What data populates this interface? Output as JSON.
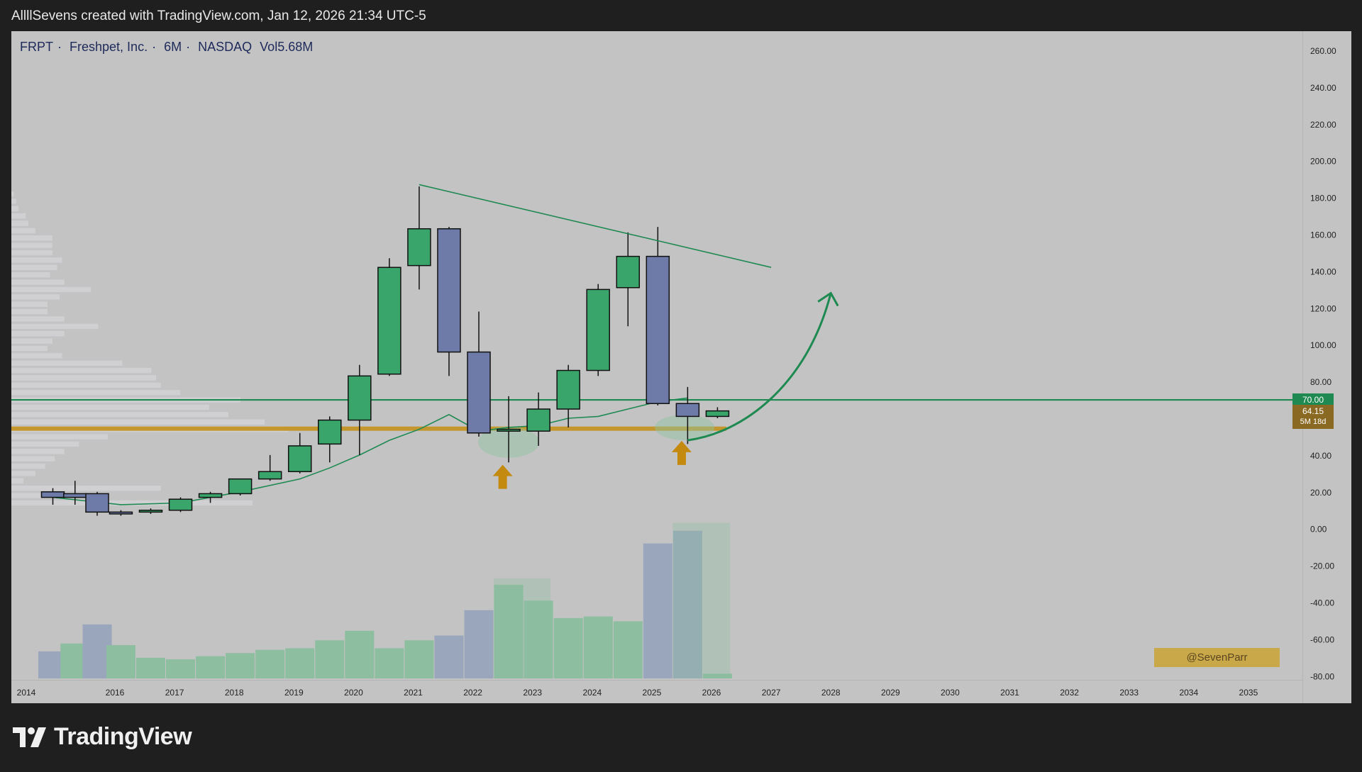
{
  "header": {
    "title": "AllllSevens created with TradingView.com, Jan 12, 2026 21:34 UTC-5"
  },
  "legend": {
    "symbol": "FRPT",
    "name": "Freshpet, Inc.",
    "interval": "6M",
    "exchange": "NASDAQ",
    "volume": "Vol5.68M"
  },
  "price_labels": {
    "level": "70.00",
    "last": "64.15",
    "countdown": "5M 18d"
  },
  "watermark": "@SevenParr",
  "brand": {
    "name": "TradingView"
  },
  "colors": {
    "up": "#3aa56b",
    "down": "#6e7ba8",
    "level_line": "#1e8a52",
    "support": "#c4972e",
    "trend": "#1e8a52",
    "arrow": "#c48a10",
    "volume_up": "#8dbea0",
    "volume_down": "#9aa6bc"
  },
  "chart_data": {
    "type": "candlestick",
    "interval": "6M",
    "ylim": [
      -80,
      260
    ],
    "yticks": [
      "260.00",
      "240.00",
      "220.00",
      "200.00",
      "180.00",
      "160.00",
      "140.00",
      "120.00",
      "100.00",
      "80.00",
      "60.00",
      "40.00",
      "20.00",
      "0.00",
      "-20.00",
      "-40.00",
      "-60.00",
      "-80.00"
    ],
    "xticks": [
      "2014",
      "2016",
      "2017",
      "2018",
      "2019",
      "2020",
      "2021",
      "2022",
      "2023",
      "2024",
      "2025",
      "2026",
      "2027",
      "2028",
      "2029",
      "2030",
      "2031",
      "2032",
      "2033",
      "2034",
      "2035"
    ],
    "candles": [
      {
        "t": 2014.6,
        "o": 20,
        "h": 22,
        "l": 13,
        "c": 17
      },
      {
        "t": 2015.1,
        "o": 19,
        "h": 26,
        "l": 13,
        "c": 17
      },
      {
        "t": 2015.6,
        "o": 19,
        "h": 20,
        "l": 7,
        "c": 9
      },
      {
        "t": 2016.1,
        "o": 9,
        "h": 10,
        "l": 7,
        "c": 8
      },
      {
        "t": 2016.6,
        "o": 9,
        "h": 11,
        "l": 8,
        "c": 10
      },
      {
        "t": 2017.1,
        "o": 10,
        "h": 17,
        "l": 9,
        "c": 16
      },
      {
        "t": 2017.6,
        "o": 17,
        "h": 20,
        "l": 14,
        "c": 19
      },
      {
        "t": 2018.1,
        "o": 19,
        "h": 27,
        "l": 18,
        "c": 27
      },
      {
        "t": 2018.6,
        "o": 27,
        "h": 40,
        "l": 26,
        "c": 31
      },
      {
        "t": 2019.1,
        "o": 31,
        "h": 52,
        "l": 30,
        "c": 45
      },
      {
        "t": 2019.6,
        "o": 46,
        "h": 61,
        "l": 36,
        "c": 59
      },
      {
        "t": 2020.1,
        "o": 59,
        "h": 89,
        "l": 40,
        "c": 83
      },
      {
        "t": 2020.6,
        "o": 84,
        "h": 147,
        "l": 83,
        "c": 142
      },
      {
        "t": 2021.1,
        "o": 143,
        "h": 186,
        "l": 130,
        "c": 163
      },
      {
        "t": 2021.6,
        "o": 163,
        "h": 164,
        "l": 83,
        "c": 96
      },
      {
        "t": 2022.1,
        "o": 96,
        "h": 118,
        "l": 50,
        "c": 52
      },
      {
        "t": 2022.6,
        "o": 53,
        "h": 72,
        "l": 36,
        "c": 54
      },
      {
        "t": 2023.1,
        "o": 53,
        "h": 74,
        "l": 45,
        "c": 65
      },
      {
        "t": 2023.6,
        "o": 65,
        "h": 89,
        "l": 55,
        "c": 86
      },
      {
        "t": 2024.1,
        "o": 86,
        "h": 133,
        "l": 83,
        "c": 130
      },
      {
        "t": 2024.6,
        "o": 131,
        "h": 161,
        "l": 110,
        "c": 148
      },
      {
        "t": 2025.1,
        "o": 148,
        "h": 164,
        "l": 67,
        "c": 68
      },
      {
        "t": 2025.6,
        "o": 68,
        "h": 77,
        "l": 46,
        "c": 61
      },
      {
        "t": 2026.1,
        "o": 61,
        "h": 66,
        "l": 60,
        "c": 64
      }
    ],
    "volume": [
      {
        "t": 2014.6,
        "v": 17,
        "up": false
      },
      {
        "t": 2015.1,
        "v": 22,
        "up": true
      },
      {
        "t": 2015.6,
        "v": 34,
        "up": false
      },
      {
        "t": 2016.1,
        "v": 21,
        "up": true
      },
      {
        "t": 2016.6,
        "v": 13,
        "up": true
      },
      {
        "t": 2017.1,
        "v": 12,
        "up": true
      },
      {
        "t": 2017.6,
        "v": 14,
        "up": true
      },
      {
        "t": 2018.1,
        "v": 16,
        "up": true
      },
      {
        "t": 2018.6,
        "v": 18,
        "up": true
      },
      {
        "t": 2019.1,
        "v": 19,
        "up": true
      },
      {
        "t": 2019.6,
        "v": 24,
        "up": true
      },
      {
        "t": 2020.1,
        "v": 30,
        "up": true
      },
      {
        "t": 2020.6,
        "v": 19,
        "up": true
      },
      {
        "t": 2021.1,
        "v": 24,
        "up": true
      },
      {
        "t": 2021.6,
        "v": 27,
        "up": false
      },
      {
        "t": 2022.1,
        "v": 43,
        "up": false
      },
      {
        "t": 2022.6,
        "v": 59,
        "up": true
      },
      {
        "t": 2023.1,
        "v": 49,
        "up": true
      },
      {
        "t": 2023.6,
        "v": 38,
        "up": true
      },
      {
        "t": 2024.1,
        "v": 39,
        "up": true
      },
      {
        "t": 2024.6,
        "v": 36,
        "up": true
      },
      {
        "t": 2025.1,
        "v": 85,
        "up": false
      },
      {
        "t": 2025.6,
        "v": 93,
        "up": false
      },
      {
        "t": 2026.1,
        "v": 3,
        "up": true
      }
    ],
    "horizontal_levels": [
      70,
      54.5
    ],
    "trendline": [
      [
        2021.1,
        187
      ],
      [
        2027.0,
        142
      ]
    ],
    "moving_average": [
      [
        2014.6,
        17
      ],
      [
        2016.1,
        13
      ],
      [
        2017.1,
        14
      ],
      [
        2018.1,
        20
      ],
      [
        2019.1,
        27
      ],
      [
        2019.6,
        33
      ],
      [
        2020.1,
        40
      ],
      [
        2020.6,
        48
      ],
      [
        2021.1,
        54
      ],
      [
        2021.6,
        62
      ],
      [
        2022.1,
        53
      ],
      [
        2022.6,
        55
      ],
      [
        2023.1,
        56
      ],
      [
        2023.6,
        60
      ],
      [
        2024.1,
        61
      ],
      [
        2024.6,
        65
      ],
      [
        2025.1,
        69
      ],
      [
        2025.6,
        71
      ]
    ],
    "projection": [
      [
        2025.6,
        48
      ],
      [
        2026.4,
        52
      ],
      [
        2027.0,
        66
      ],
      [
        2027.6,
        93
      ],
      [
        2028.0,
        128
      ]
    ],
    "annotation_arrows": [
      {
        "t": 2022.5,
        "price": 27
      },
      {
        "t": 2025.5,
        "price": 40
      }
    ],
    "volume_profile": [
      {
        "price": 14,
        "w": 1.0
      },
      {
        "price": 18,
        "w": 0.25
      },
      {
        "price": 22,
        "w": 0.62
      },
      {
        "price": 26,
        "w": 0.05
      },
      {
        "price": 30,
        "w": 0.1
      },
      {
        "price": 34,
        "w": 0.14
      },
      {
        "price": 38,
        "w": 0.18
      },
      {
        "price": 42,
        "w": 0.22
      },
      {
        "price": 46,
        "w": 0.28
      },
      {
        "price": 50,
        "w": 0.4
      },
      {
        "price": 54,
        "w": 1.15
      },
      {
        "price": 58,
        "w": 1.05
      },
      {
        "price": 62,
        "w": 0.9
      },
      {
        "price": 66,
        "w": 0.82
      },
      {
        "price": 70,
        "w": 0.95
      },
      {
        "price": 74,
        "w": 0.7
      },
      {
        "price": 78,
        "w": 0.62
      },
      {
        "price": 82,
        "w": 0.6
      },
      {
        "price": 86,
        "w": 0.58
      },
      {
        "price": 90,
        "w": 0.46
      },
      {
        "price": 94,
        "w": 0.21
      },
      {
        "price": 98,
        "w": 0.15
      },
      {
        "price": 102,
        "w": 0.17
      },
      {
        "price": 106,
        "w": 0.22
      },
      {
        "price": 110,
        "w": 0.36
      },
      {
        "price": 114,
        "w": 0.22
      },
      {
        "price": 118,
        "w": 0.15
      },
      {
        "price": 122,
        "w": 0.15
      },
      {
        "price": 126,
        "w": 0.2
      },
      {
        "price": 130,
        "w": 0.33
      },
      {
        "price": 134,
        "w": 0.22
      },
      {
        "price": 138,
        "w": 0.16
      },
      {
        "price": 142,
        "w": 0.19
      },
      {
        "price": 146,
        "w": 0.21
      },
      {
        "price": 150,
        "w": 0.17
      },
      {
        "price": 154,
        "w": 0.17
      },
      {
        "price": 158,
        "w": 0.17
      },
      {
        "price": 162,
        "w": 0.1
      },
      {
        "price": 166,
        "w": 0.07
      },
      {
        "price": 170,
        "w": 0.06
      },
      {
        "price": 174,
        "w": 0.03
      },
      {
        "price": 178,
        "w": 0.02
      },
      {
        "price": 182,
        "w": 0.01
      }
    ]
  }
}
